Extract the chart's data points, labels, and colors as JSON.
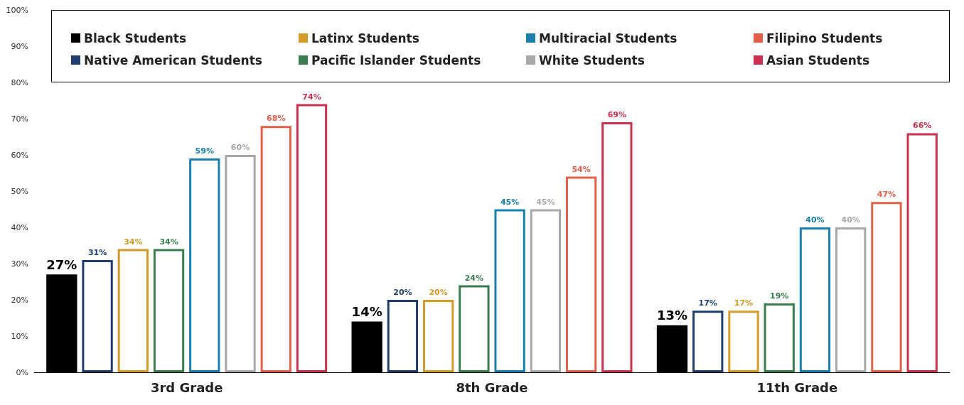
{
  "chart_data": {
    "type": "bar",
    "categories": [
      "3rd Grade",
      "8th Grade",
      "11th Grade"
    ],
    "series": [
      {
        "name": "Black Students",
        "color": "#000000",
        "values": [
          27,
          14,
          13
        ],
        "value_labels": [
          "27%",
          "14%",
          "13%"
        ]
      },
      {
        "name": "Native American Students",
        "color": "#1f3e6e",
        "values": [
          31,
          20,
          17
        ],
        "value_labels": [
          "31%",
          "20%",
          "17%"
        ]
      },
      {
        "name": "Latinx Students",
        "color": "#d39b2a",
        "values": [
          34,
          20,
          17
        ],
        "value_labels": [
          "34%",
          "20%",
          "17%"
        ]
      },
      {
        "name": "Pacific Islander Students",
        "color": "#3a7d4f",
        "values": [
          34,
          24,
          19
        ],
        "value_labels": [
          "34%",
          "24%",
          "19%"
        ]
      },
      {
        "name": "Multiracial Students",
        "color": "#1a7fac",
        "values": [
          59,
          45,
          40
        ],
        "value_labels": [
          "59%",
          "45%",
          "40%"
        ]
      },
      {
        "name": "White Students",
        "color": "#a8a8a8",
        "values": [
          60,
          45,
          40
        ],
        "value_labels": [
          "60%",
          "45%",
          "40%"
        ]
      },
      {
        "name": "Filipino Students",
        "color": "#e0604a",
        "values": [
          68,
          54,
          47
        ],
        "value_labels": [
          "68%",
          "54%",
          "47%"
        ]
      },
      {
        "name": "Asian Students",
        "color": "#c8324f",
        "values": [
          74,
          69,
          66
        ],
        "value_labels": [
          "74%",
          "69%",
          "66%"
        ]
      }
    ],
    "ylim": [
      0,
      100
    ],
    "yticks": [
      {
        "value": 0,
        "label": "0%"
      },
      {
        "value": 10,
        "label": "10%"
      },
      {
        "value": 20,
        "label": "20%"
      },
      {
        "value": 30,
        "label": "30%"
      },
      {
        "value": 40,
        "label": "40%"
      },
      {
        "value": 50,
        "label": "50%"
      },
      {
        "value": 60,
        "label": "60%"
      },
      {
        "value": 70,
        "label": "70%"
      },
      {
        "value": 80,
        "label": "80%"
      },
      {
        "value": 90,
        "label": "90%"
      },
      {
        "value": 100,
        "label": "100%"
      }
    ],
    "grid": false,
    "legend": "top"
  }
}
